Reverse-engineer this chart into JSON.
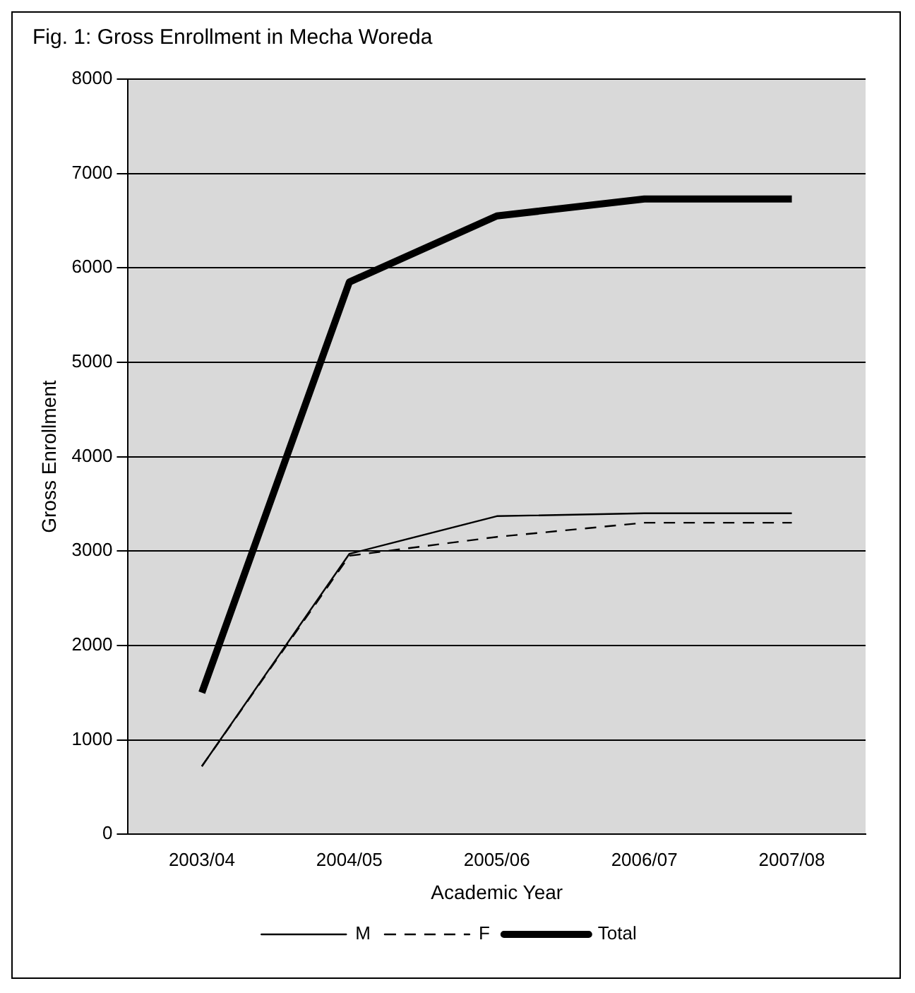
{
  "chart_data": {
    "type": "line",
    "title": "Fig. 1: Gross Enrollment in Mecha Woreda",
    "xlabel": "Academic Year",
    "ylabel": "Gross Enrollment",
    "categories": [
      "2003/04",
      "2004/05",
      "2005/06",
      "2006/07",
      "2007/08"
    ],
    "series": [
      {
        "name": "M",
        "color": "#000000",
        "values": [
          720,
          2970,
          3370,
          3400,
          3400
        ],
        "line_style": "solid"
      },
      {
        "name": "F",
        "color": "#000000",
        "values": [
          720,
          2950,
          3150,
          3300,
          3300
        ],
        "line_style": "dashed"
      },
      {
        "name": "Total",
        "color": "#000000",
        "values": [
          1500,
          5850,
          6550,
          6730,
          6730
        ],
        "line_style": "solid"
      }
    ],
    "ylim": [
      0,
      8000
    ],
    "yticks": [
      0,
      1000,
      2000,
      3000,
      4000,
      5000,
      6000,
      7000,
      8000
    ],
    "grid": "y",
    "legend": "bottom",
    "marker": "none"
  }
}
